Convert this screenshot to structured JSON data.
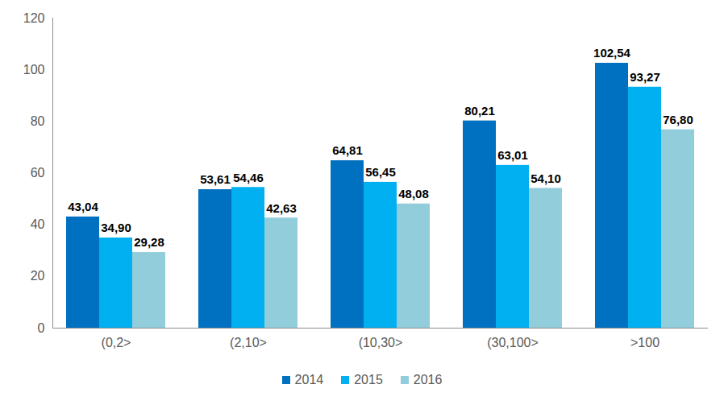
{
  "chart_data": {
    "type": "bar",
    "categories": [
      "(0,2>",
      "(2,10>",
      "(10,30>",
      "(30,100>",
      ">100"
    ],
    "series": [
      {
        "name": "2014",
        "color": "#0070c0",
        "values": [
          43.04,
          53.61,
          64.81,
          80.21,
          102.54
        ],
        "value_labels": [
          "43,04",
          "53,61",
          "64,81",
          "80,21",
          "102,54"
        ]
      },
      {
        "name": "2015",
        "color": "#00b0f0",
        "values": [
          34.9,
          54.46,
          56.45,
          63.01,
          93.27
        ],
        "value_labels": [
          "34,90",
          "54,46",
          "56,45",
          "63,01",
          "93,27"
        ]
      },
      {
        "name": "2016",
        "color": "#92cddc",
        "values": [
          29.28,
          42.63,
          48.08,
          54.1,
          76.8
        ],
        "value_labels": [
          "29,28",
          "42,63",
          "48,08",
          "54,10",
          "76,80"
        ]
      }
    ],
    "ylim": [
      0,
      120
    ],
    "yticks": [
      0,
      20,
      40,
      60,
      80,
      100,
      120
    ],
    "grid": false,
    "data_labels": true,
    "legend": "bottom"
  }
}
